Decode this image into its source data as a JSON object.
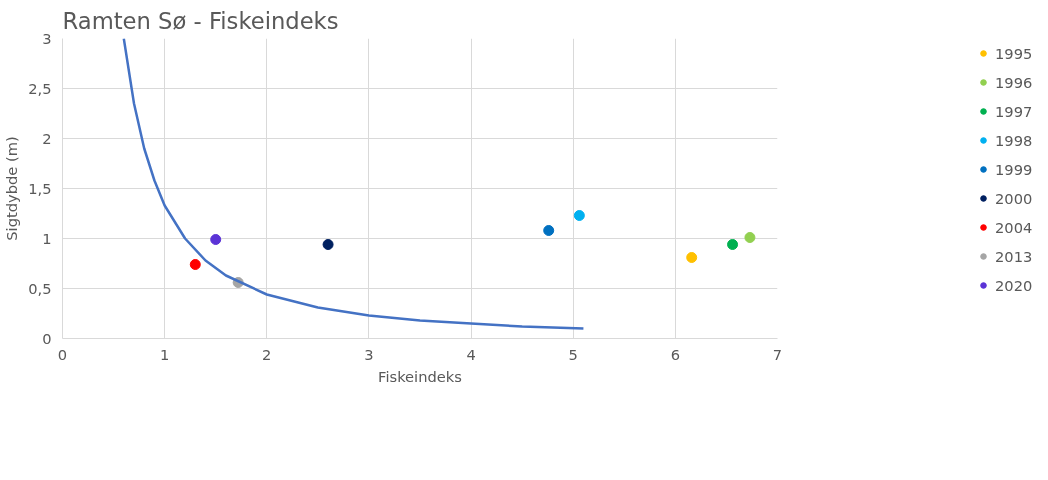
{
  "chart_data": {
    "type": "scatter",
    "title": "Ramten Sø - Fiskeindeks",
    "xlabel": "Fiskeindeks",
    "ylabel": "Sigtdybde (m)",
    "xlim": [
      0,
      7
    ],
    "xticks": [
      0,
      1,
      2,
      3,
      4,
      5,
      6,
      7
    ],
    "ylim": [
      0,
      3
    ],
    "yticks": [
      0,
      {
        "value": 0.5,
        "label": "0,5"
      },
      1,
      {
        "value": 1.5,
        "label": "1,5"
      },
      2,
      {
        "value": 2.5,
        "label": "2,5"
      },
      3
    ],
    "grid": true,
    "legend": "right",
    "marker": "circle",
    "series": [
      {
        "name": "1995",
        "color": "#ffc000",
        "x": [
          6.16
        ],
        "values": [
          0.81
        ]
      },
      {
        "name": "1996",
        "color": "#92d050",
        "x": [
          6.73
        ],
        "values": [
          1.01
        ]
      },
      {
        "name": "1997",
        "color": "#00b050",
        "x": [
          6.56
        ],
        "values": [
          0.94
        ]
      },
      {
        "name": "1998",
        "color": "#00b0f0",
        "x": [
          5.06
        ],
        "values": [
          1.23
        ]
      },
      {
        "name": "1999",
        "color": "#0070c0",
        "x": [
          4.76
        ],
        "values": [
          1.08
        ]
      },
      {
        "name": "2000",
        "color": "#002060",
        "x": [
          2.6
        ],
        "values": [
          0.94
        ]
      },
      {
        "name": "2004",
        "color": "#ff0000",
        "x": [
          1.3
        ],
        "values": [
          0.74
        ]
      },
      {
        "name": "2013",
        "color": "#a5a5a5",
        "x": [
          1.72
        ],
        "values": [
          0.56
        ]
      },
      {
        "name": "2020",
        "color": "#5b33d6",
        "x": [
          1.5
        ],
        "values": [
          0.99
        ]
      },
      {
        "type": "line",
        "marker": "none",
        "color": "#4472c4",
        "line_style": "solid",
        "x": [
          0.6,
          0.7,
          0.8,
          0.9,
          1.0,
          1.2,
          1.4,
          1.6,
          2.0,
          2.5,
          3.0,
          3.5,
          4.0,
          4.5,
          5.1
        ],
        "values": [
          3.0,
          2.35,
          1.9,
          1.58,
          1.33,
          1.0,
          0.78,
          0.63,
          0.44,
          0.31,
          0.23,
          0.18,
          0.15,
          0.12,
          0.1
        ]
      }
    ]
  }
}
